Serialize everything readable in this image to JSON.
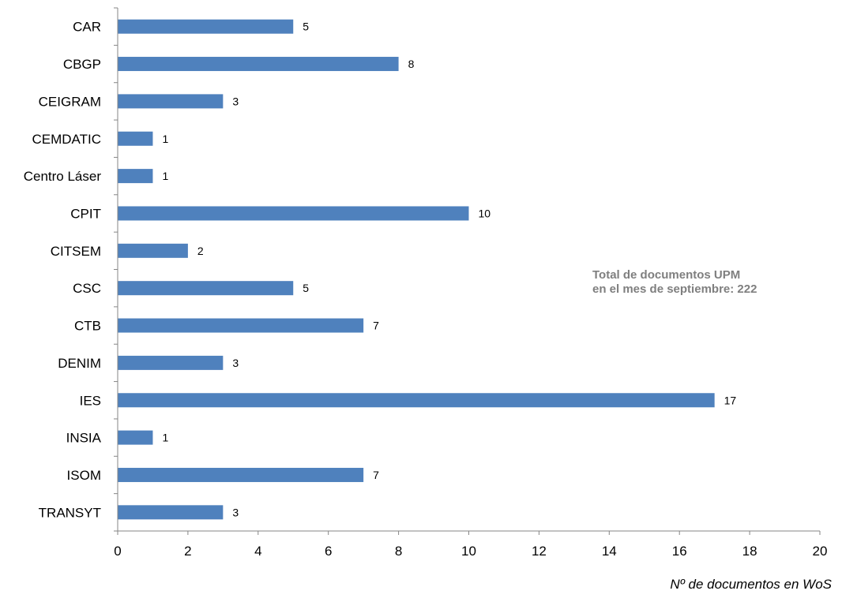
{
  "chart_data": {
    "type": "bar",
    "orientation": "horizontal",
    "categories": [
      "CAR",
      "CBGP",
      "CEIGRAM",
      "CEMDATIC",
      "Centro Láser",
      "CPIT",
      "CITSEM",
      "CSC",
      "CTB",
      "DENIM",
      "IES",
      "INSIA",
      "ISOM",
      "TRANSYT"
    ],
    "values": [
      5,
      8,
      3,
      1,
      1,
      10,
      2,
      5,
      7,
      3,
      17,
      1,
      7,
      3
    ],
    "xlabel": "Nº de documentos en WoS",
    "xlim": [
      0,
      20
    ],
    "x_ticks": [
      "0",
      "2",
      "4",
      "6",
      "8",
      "10",
      "12",
      "14",
      "16",
      "18",
      "20"
    ],
    "grid": false,
    "legend": "none",
    "bar_color": "#4f81bd",
    "annotation": {
      "line1": "Total de documentos UPM",
      "line2": "en el mes de septiembre: 222"
    }
  }
}
